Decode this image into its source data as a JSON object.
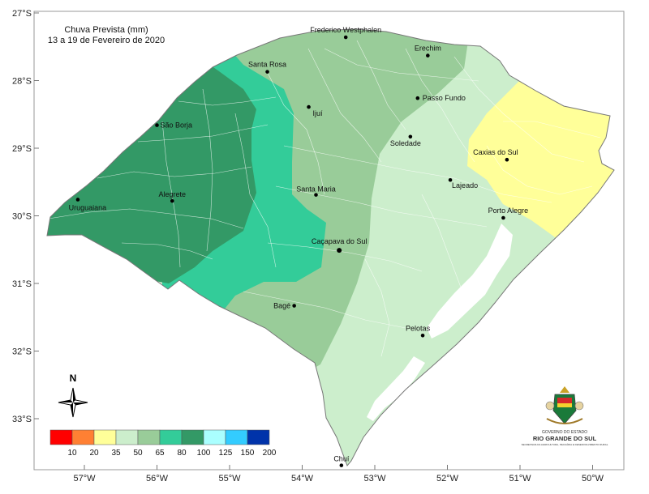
{
  "map": {
    "title": "Chuva Prevista (mm)",
    "subtitle": "13 a 19 de Fevereiro de 2020",
    "lat_ticks": [
      "27°S",
      "28°S",
      "29°S",
      "30°S",
      "31°S",
      "32°S",
      "33°S"
    ],
    "lon_ticks": [
      "57°W",
      "56°W",
      "55°W",
      "54°W",
      "53°W",
      "52°W",
      "51°W",
      "50°W"
    ],
    "north_label": "N",
    "zone_colors": {
      "35": "#ffff99",
      "50": "#cceecc",
      "65": "#99cc99",
      "80": "#33cc99",
      "100": "#339966",
      "water": "#ffffff"
    },
    "cities": [
      {
        "name": "Frederico Westphalen",
        "lon": -53.4,
        "lat": -27.36
      },
      {
        "name": "Erechim",
        "lon": -52.27,
        "lat": -27.63
      },
      {
        "name": "Santa Rosa",
        "lon": -54.48,
        "lat": -27.87
      },
      {
        "name": "Passo Fundo",
        "lon": -52.41,
        "lat": -28.26
      },
      {
        "name": "Ijuí",
        "lon": -53.91,
        "lat": -28.39
      },
      {
        "name": "São Borja",
        "lon": -56.0,
        "lat": -28.66
      },
      {
        "name": "Soledade",
        "lon": -52.51,
        "lat": -28.83
      },
      {
        "name": "Caxias do Sul",
        "lon": -51.18,
        "lat": -29.17
      },
      {
        "name": "Lajeado",
        "lon": -51.96,
        "lat": -29.47
      },
      {
        "name": "Santa Maria",
        "lon": -53.81,
        "lat": -29.69
      },
      {
        "name": "Uruguaiana",
        "lon": -57.09,
        "lat": -29.76
      },
      {
        "name": "Alegrete",
        "lon": -55.79,
        "lat": -29.78
      },
      {
        "name": "Porto Alegre",
        "lon": -51.23,
        "lat": -30.03
      },
      {
        "name": "Caçapava do Sul",
        "lon": -53.49,
        "lat": -30.51
      },
      {
        "name": "Bagé",
        "lon": -54.11,
        "lat": -31.33
      },
      {
        "name": "Pelotas",
        "lon": -52.34,
        "lat": -31.77
      },
      {
        "name": "Chuí",
        "lon": -53.46,
        "lat": -33.69
      }
    ]
  },
  "legend": {
    "items": [
      {
        "value": "10",
        "color": "#ff0000"
      },
      {
        "value": "20",
        "color": "#ff8033"
      },
      {
        "value": "35",
        "color": "#ffff99"
      },
      {
        "value": "50",
        "color": "#cceecc"
      },
      {
        "value": "65",
        "color": "#99cc99"
      },
      {
        "value": "80",
        "color": "#33cc99"
      },
      {
        "value": "100",
        "color": "#339966"
      },
      {
        "value": "125",
        "color": "#aaffff"
      },
      {
        "value": "150",
        "color": "#33ccff"
      },
      {
        "value": "200",
        "color": "#0033aa"
      }
    ]
  },
  "seal": {
    "line1": "GOVERNO DO ESTADO",
    "line2": "RIO GRANDE DO SUL",
    "line3": "SECRETARIA DA AGRICULTURA, PECUÁRIA E DESENVOLVIMENTO RURAL"
  }
}
